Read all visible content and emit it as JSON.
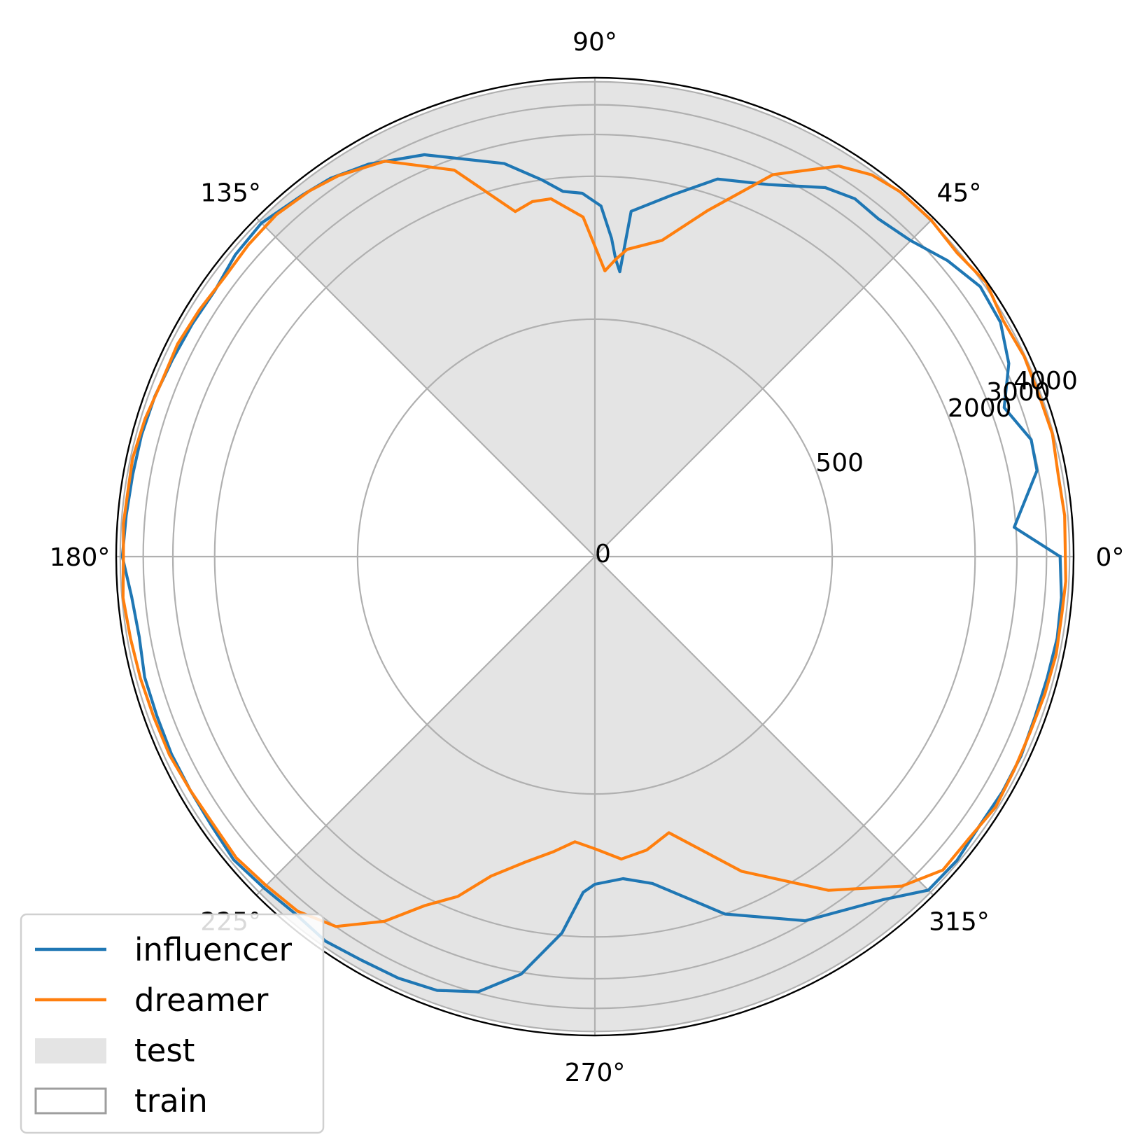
{
  "chart_data": {
    "type": "polar-line",
    "theta_unit": "degrees",
    "r_range": [
      0,
      5200
    ],
    "r_scale": "symlog",
    "r_ticks": [
      0,
      500,
      2000,
      3000,
      4000
    ],
    "r_tick_labels": [
      "0",
      "500",
      "2000",
      "3000",
      "4000"
    ],
    "r_gridlines": [
      500,
      2000,
      3000,
      4000,
      5000
    ],
    "theta_ticks": [
      0,
      45,
      90,
      135,
      180,
      225,
      270,
      315
    ],
    "theta_tick_labels": [
      "0°",
      "45°",
      "90°",
      "135°",
      "180°",
      "225°",
      "270°",
      "315°"
    ],
    "grid": true,
    "legend_position": "lower-left",
    "colors": {
      "influencer": "#1f77b4",
      "dreamer": "#ff7f0e",
      "test_fill": "#e4e4e4",
      "train_edge": "#9e9e9e",
      "grid": "#b0b0b0"
    },
    "shaded_regions": [
      {
        "label": "test",
        "r_max": 5000,
        "theta_ranges": [
          [
            45,
            135
          ],
          [
            225,
            315
          ]
        ]
      }
    ],
    "legend": [
      {
        "label": "influencer",
        "kind": "line",
        "color": "#1f77b4"
      },
      {
        "label": "dreamer",
        "kind": "line",
        "color": "#ff7f0e"
      },
      {
        "label": "test",
        "kind": "patch",
        "color": "#e4e4e4"
      },
      {
        "label": "train",
        "kind": "empty-patch",
        "color": "#9e9e9e"
      }
    ],
    "series": [
      {
        "name": "influencer",
        "points": [
          [
            0,
            4560
          ],
          [
            4,
            2950
          ],
          [
            11,
            3950
          ],
          [
            15,
            4000
          ],
          [
            20,
            3420
          ],
          [
            25,
            4200
          ],
          [
            30,
            4700
          ],
          [
            35,
            4800
          ],
          [
            40,
            4350
          ],
          [
            45,
            3810
          ],
          [
            50,
            3600
          ],
          [
            54,
            3650
          ],
          [
            58,
            3400
          ],
          [
            65,
            2680
          ],
          [
            72,
            2350
          ],
          [
            78,
            1800
          ],
          [
            84,
            1450
          ],
          [
            85,
            800
          ],
          [
            86,
            900
          ],
          [
            87,
            1100
          ],
          [
            89,
            1500
          ],
          [
            92,
            1700
          ],
          [
            95,
            1750
          ],
          [
            98,
            2000
          ],
          [
            103,
            2500
          ],
          [
            113,
            3450
          ],
          [
            120,
            4050
          ],
          [
            125,
            4400
          ],
          [
            129,
            4550
          ],
          [
            135,
            4850
          ],
          [
            140,
            4750
          ],
          [
            145,
            4500
          ],
          [
            150,
            4550
          ],
          [
            155,
            4600
          ],
          [
            160,
            4700
          ],
          [
            165,
            4750
          ],
          [
            170,
            4750
          ],
          [
            175,
            4800
          ],
          [
            180,
            4900
          ],
          [
            185,
            4550
          ],
          [
            190,
            4450
          ],
          [
            195,
            4600
          ],
          [
            200,
            4600
          ],
          [
            205,
            4650
          ],
          [
            210,
            4650
          ],
          [
            215,
            4700
          ],
          [
            220,
            4850
          ],
          [
            225,
            4700
          ],
          [
            230,
            4600
          ],
          [
            235,
            4750
          ],
          [
            240,
            4600
          ],
          [
            245,
            4550
          ],
          [
            250,
            4400
          ],
          [
            255,
            3950
          ],
          [
            260,
            3050
          ],
          [
            265,
            1950
          ],
          [
            268,
            1300
          ],
          [
            270,
            1200
          ],
          [
            275,
            1150
          ],
          [
            280,
            1250
          ],
          [
            290,
            2000
          ],
          [
            300,
            2950
          ],
          [
            310,
            3850
          ],
          [
            315,
            4850
          ],
          [
            320,
            4900
          ],
          [
            325,
            4750
          ],
          [
            330,
            4800
          ],
          [
            335,
            4800
          ],
          [
            340,
            4700
          ],
          [
            345,
            4700
          ],
          [
            350,
            4750
          ],
          [
            355,
            4700
          ],
          [
            360,
            4560
          ]
        ]
      },
      {
        "name": "dreamer",
        "points": [
          [
            0,
            4800
          ],
          [
            5,
            4850
          ],
          [
            10,
            4800
          ],
          [
            15,
            4950
          ],
          [
            20,
            4900
          ],
          [
            25,
            4950
          ],
          [
            30,
            4850
          ],
          [
            35,
            5150
          ],
          [
            40,
            4900
          ],
          [
            45,
            5050
          ],
          [
            50,
            5050
          ],
          [
            54,
            4850
          ],
          [
            58,
            4350
          ],
          [
            65,
            2980
          ],
          [
            72,
            1700
          ],
          [
            78,
            1150
          ],
          [
            84,
            1000
          ],
          [
            86,
            900
          ],
          [
            88,
            800
          ],
          [
            92,
            1350
          ],
          [
            97,
            1650
          ],
          [
            100,
            1650
          ],
          [
            103,
            1550
          ],
          [
            110,
            2700
          ],
          [
            118,
            3850
          ],
          [
            124,
            4300
          ],
          [
            128,
            4500
          ],
          [
            133,
            4650
          ],
          [
            138,
            4600
          ],
          [
            143,
            4500
          ],
          [
            148,
            4600
          ],
          [
            153,
            4700
          ],
          [
            158,
            4650
          ],
          [
            163,
            4800
          ],
          [
            168,
            4900
          ],
          [
            172,
            4850
          ],
          [
            176,
            4900
          ],
          [
            180,
            4850
          ],
          [
            185,
            4950
          ],
          [
            190,
            4850
          ],
          [
            195,
            4800
          ],
          [
            200,
            4750
          ],
          [
            205,
            4750
          ],
          [
            210,
            4650
          ],
          [
            215,
            4600
          ],
          [
            220,
            4700
          ],
          [
            225,
            4550
          ],
          [
            230,
            4450
          ],
          [
            235,
            3990
          ],
          [
            240,
            2970
          ],
          [
            244,
            2160
          ],
          [
            248,
            1750
          ],
          [
            252,
            1300
          ],
          [
            257,
            1050
          ],
          [
            262,
            900
          ],
          [
            266,
            800
          ],
          [
            270,
            850
          ],
          [
            275,
            950
          ],
          [
            280,
            900
          ],
          [
            285,
            800
          ],
          [
            295,
            1450
          ],
          [
            305,
            2600
          ],
          [
            313,
            3950
          ],
          [
            318,
            4700
          ],
          [
            323,
            4700
          ],
          [
            328,
            4900
          ],
          [
            333,
            4800
          ],
          [
            338,
            4750
          ],
          [
            343,
            4800
          ],
          [
            348,
            4850
          ],
          [
            353,
            4800
          ],
          [
            357,
            4850
          ],
          [
            360,
            4800
          ]
        ]
      }
    ]
  }
}
